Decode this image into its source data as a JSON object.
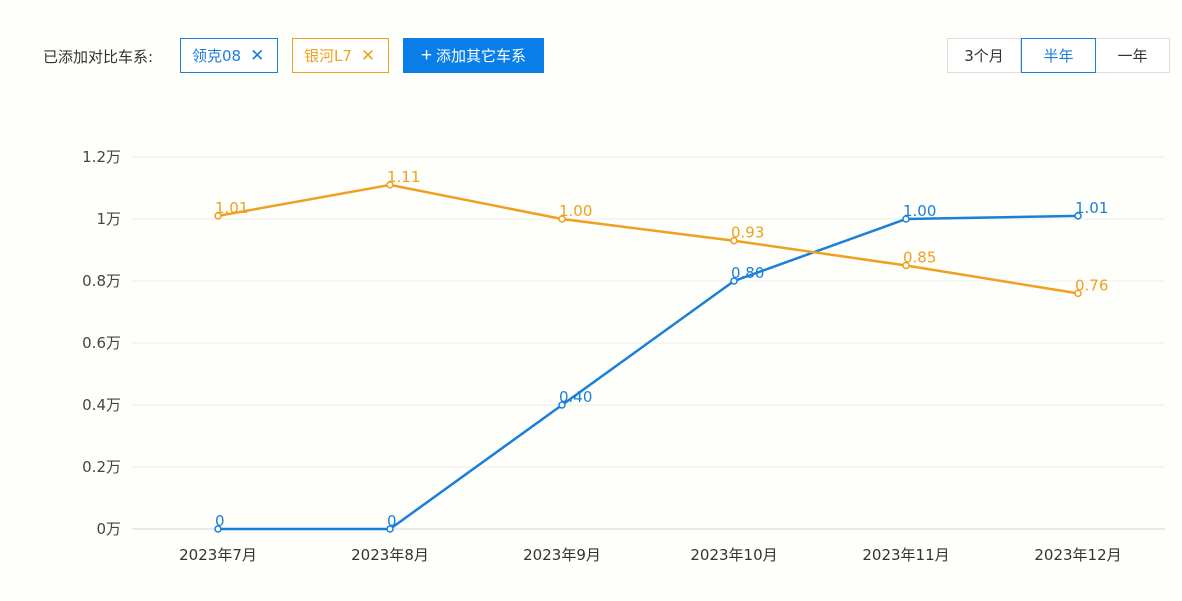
{
  "toolbar": {
    "compare_label": "已添加对比车系:",
    "chips": [
      {
        "label": "领克08",
        "color": "#1a7fd9",
        "remove_icon": "close-icon"
      },
      {
        "label": "银河L7",
        "color": "#f0a020",
        "remove_icon": "close-icon"
      }
    ],
    "add_button": {
      "icon": "plus-icon",
      "label": "添加其它车系",
      "color": "#0a7ee8"
    },
    "range_options": [
      "3个月",
      "半年",
      "一年"
    ],
    "range_selected": "半年"
  },
  "chart_data": {
    "type": "line",
    "categories": [
      "2023年7月",
      "2023年8月",
      "2023年9月",
      "2023年10月",
      "2023年11月",
      "2023年12月"
    ],
    "y_ticks": [
      "0万",
      "0.2万",
      "0.4万",
      "0.6万",
      "0.8万",
      "1万",
      "1.2万"
    ],
    "ylim": [
      0,
      1.2
    ],
    "grid": true,
    "series": [
      {
        "name": "领克08",
        "color": "#1a7fd9",
        "values": [
          0,
          0,
          0.4,
          0.8,
          1.0,
          1.01
        ],
        "labels": [
          "0",
          "0",
          "0.40",
          "0.80",
          "1.00",
          "1.01"
        ]
      },
      {
        "name": "银河L7",
        "color": "#f0a020",
        "values": [
          1.01,
          1.11,
          1.0,
          0.93,
          0.85,
          0.76
        ],
        "labels": [
          "1.01",
          "1.11",
          "1.00",
          "0.93",
          "0.85",
          "0.76"
        ]
      }
    ]
  }
}
